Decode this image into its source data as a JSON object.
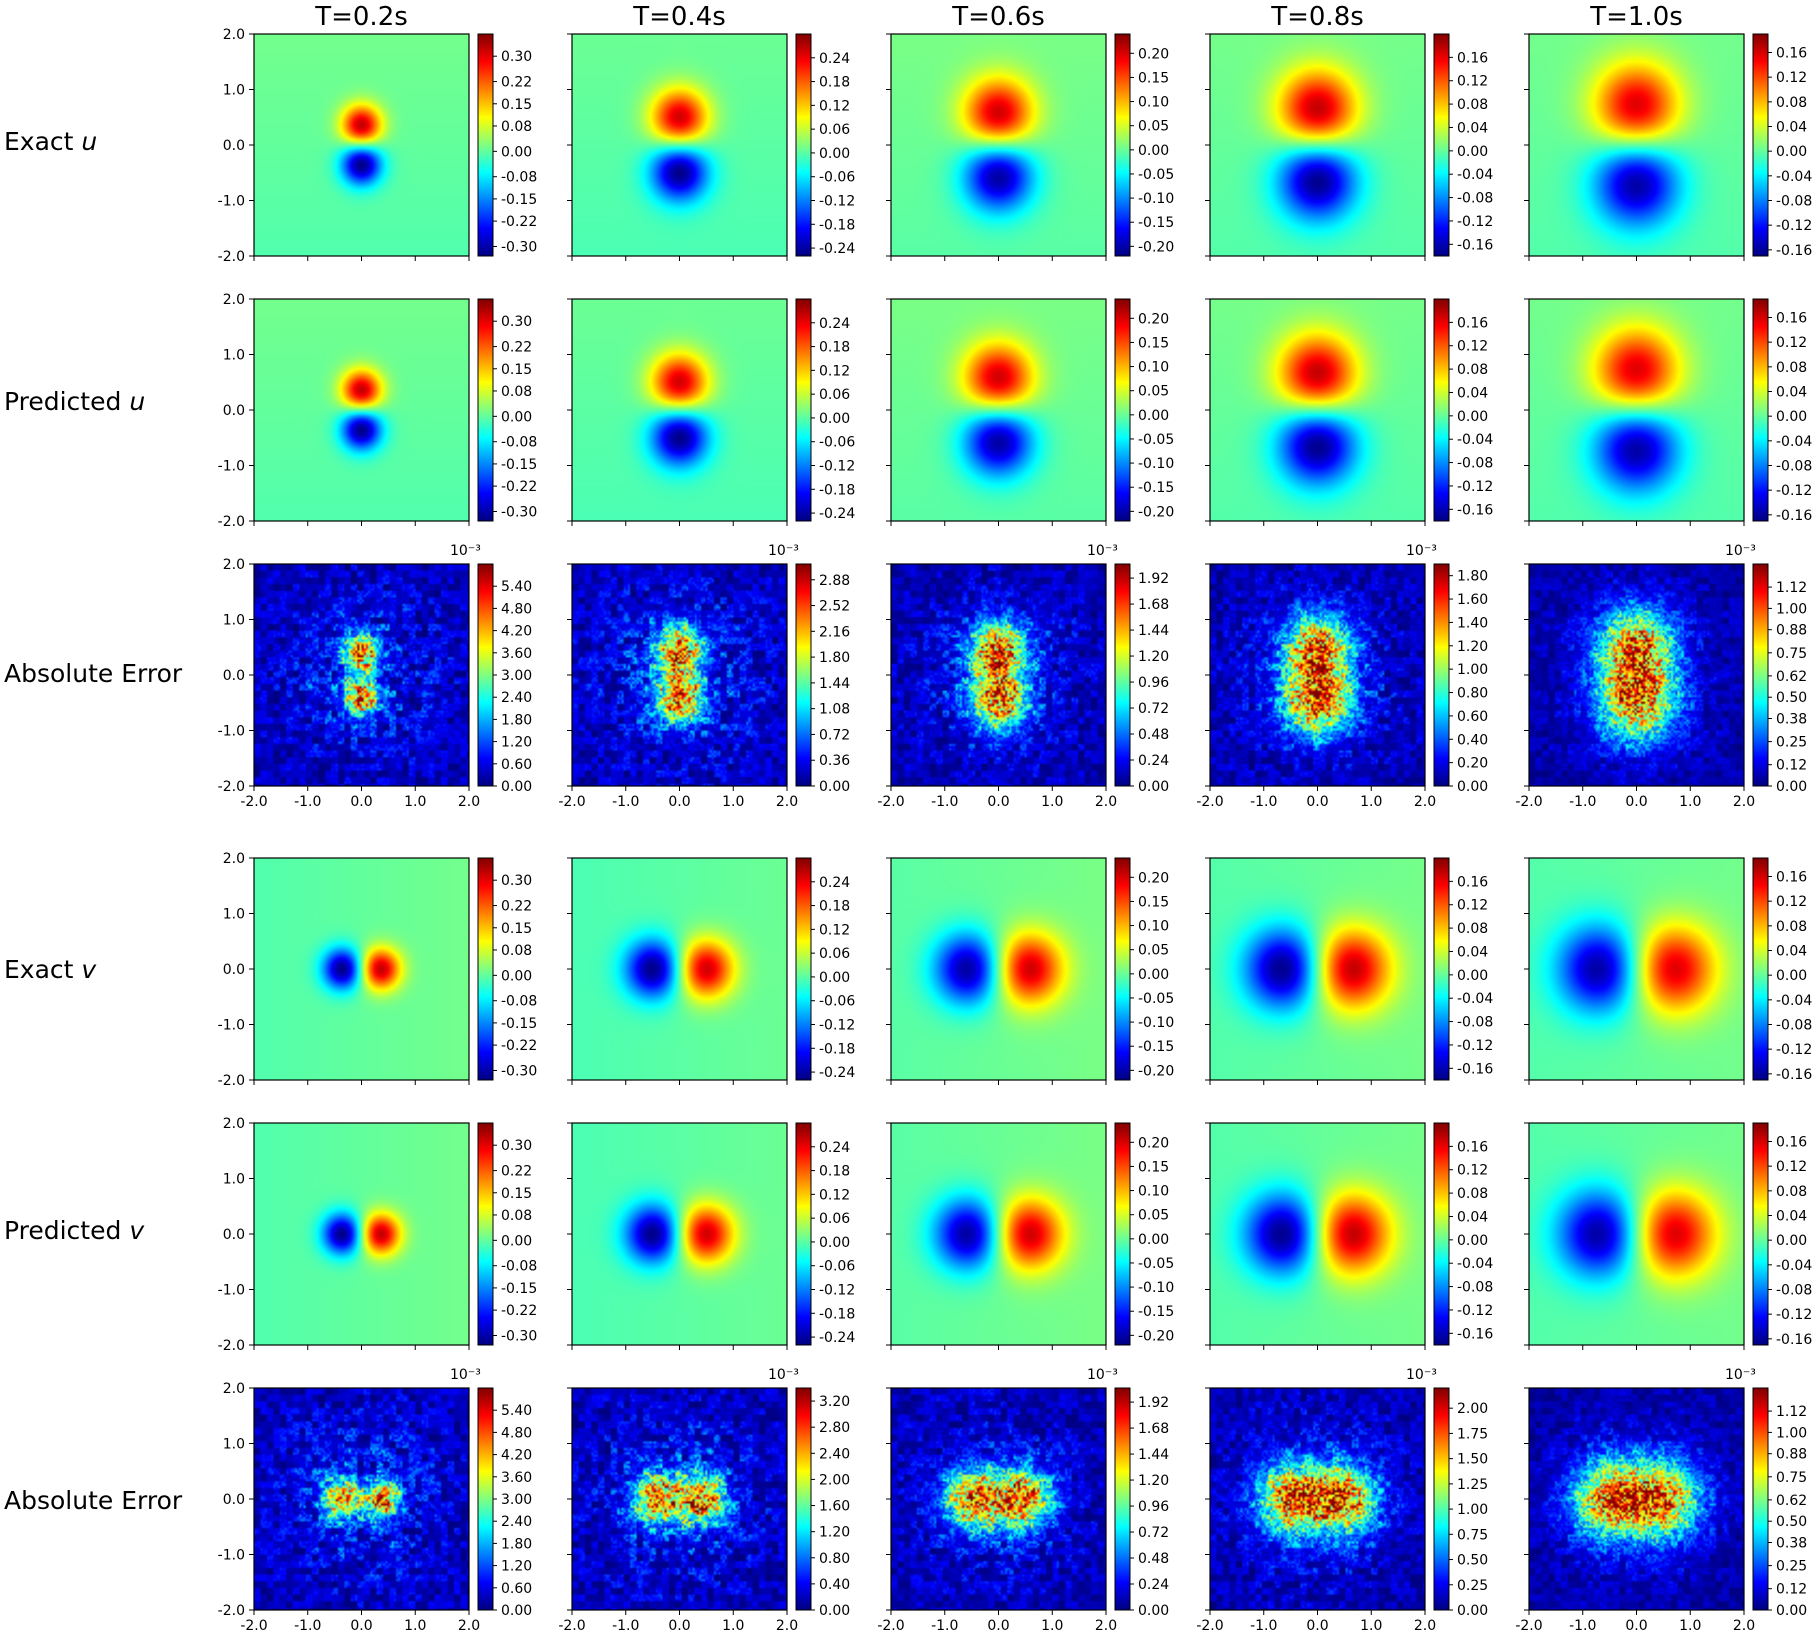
{
  "colormap": "jet",
  "colors": {
    "axis": "#000000",
    "text": "#000000"
  },
  "column_titles": [
    "T=0.2s",
    "T=0.4s",
    "T=0.6s",
    "T=0.8s",
    "T=1.0s"
  ],
  "row_labels": [
    {
      "text": "Exact ",
      "var": "u"
    },
    {
      "text": "Predicted ",
      "var": "u"
    },
    {
      "text": "Absolute Error",
      "var": ""
    },
    {
      "text": "Exact ",
      "var": "v"
    },
    {
      "text": "Predicted ",
      "var": "v"
    },
    {
      "text": "Absolute Error",
      "var": ""
    }
  ],
  "chart_data": {
    "type": "heatmap",
    "title": "",
    "xlim": [
      -2.0,
      2.0
    ],
    "ylim": [
      -2.0,
      2.0
    ],
    "x_ticks": [
      "-2.0",
      "-1.0",
      "0.0",
      "1.0",
      "2.0"
    ],
    "y_ticks": [
      "2.0",
      "1.0",
      "0.0",
      "-1.0",
      "-2.0"
    ],
    "exponent_label": "10⁻³",
    "rows": [
      {
        "name": "exact-u",
        "field": "u",
        "kind": "field",
        "panels": [
          {
            "T": 0.2,
            "amp": 0.33,
            "sigma": 0.26,
            "offset": 0.35,
            "cmin": -0.33,
            "cmax": 0.37,
            "ticks": [
              "0.30",
              "0.22",
              "0.15",
              "0.08",
              "0.00",
              "-0.08",
              "-0.15",
              "-0.22",
              "-0.30"
            ]
          },
          {
            "T": 0.4,
            "amp": 0.26,
            "sigma": 0.37,
            "offset": 0.48,
            "cmin": -0.26,
            "cmax": 0.3,
            "ticks": [
              "0.24",
              "0.18",
              "0.12",
              "0.06",
              "0.00",
              "-0.06",
              "-0.12",
              "-0.18",
              "-0.24"
            ]
          },
          {
            "T": 0.6,
            "amp": 0.21,
            "sigma": 0.45,
            "offset": 0.55,
            "cmin": -0.22,
            "cmax": 0.24,
            "ticks": [
              "0.20",
              "0.15",
              "0.10",
              "0.05",
              "0.00",
              "-0.05",
              "-0.10",
              "-0.15",
              "-0.20"
            ]
          },
          {
            "T": 0.8,
            "amp": 0.18,
            "sigma": 0.51,
            "offset": 0.62,
            "cmin": -0.18,
            "cmax": 0.2,
            "ticks": [
              "0.16",
              "0.12",
              "0.08",
              "0.04",
              "0.00",
              "-0.04",
              "-0.08",
              "-0.12",
              "-0.16"
            ]
          },
          {
            "T": 1.0,
            "amp": 0.16,
            "sigma": 0.55,
            "offset": 0.68,
            "cmin": -0.17,
            "cmax": 0.19,
            "ticks": [
              "0.16",
              "0.12",
              "0.08",
              "0.04",
              "0.00",
              "-0.04",
              "-0.08",
              "-0.12",
              "-0.16"
            ]
          }
        ]
      },
      {
        "name": "predicted-u",
        "field": "u",
        "kind": "field",
        "panels": [
          {
            "T": 0.2,
            "amp": 0.33,
            "sigma": 0.26,
            "offset": 0.35,
            "cmin": -0.33,
            "cmax": 0.37,
            "ticks": [
              "0.30",
              "0.22",
              "0.15",
              "0.08",
              "0.00",
              "-0.08",
              "-0.15",
              "-0.22",
              "-0.30"
            ]
          },
          {
            "T": 0.4,
            "amp": 0.26,
            "sigma": 0.37,
            "offset": 0.48,
            "cmin": -0.26,
            "cmax": 0.3,
            "ticks": [
              "0.24",
              "0.18",
              "0.12",
              "0.06",
              "0.00",
              "-0.06",
              "-0.12",
              "-0.18",
              "-0.24"
            ]
          },
          {
            "T": 0.6,
            "amp": 0.21,
            "sigma": 0.45,
            "offset": 0.55,
            "cmin": -0.22,
            "cmax": 0.24,
            "ticks": [
              "0.20",
              "0.15",
              "0.10",
              "0.05",
              "0.00",
              "-0.05",
              "-0.10",
              "-0.15",
              "-0.20"
            ]
          },
          {
            "T": 0.8,
            "amp": 0.18,
            "sigma": 0.51,
            "offset": 0.62,
            "cmin": -0.18,
            "cmax": 0.2,
            "ticks": [
              "0.16",
              "0.12",
              "0.08",
              "0.04",
              "0.00",
              "-0.04",
              "-0.08",
              "-0.12",
              "-0.16"
            ]
          },
          {
            "T": 1.0,
            "amp": 0.16,
            "sigma": 0.55,
            "offset": 0.68,
            "cmin": -0.17,
            "cmax": 0.19,
            "ticks": [
              "0.16",
              "0.12",
              "0.08",
              "0.04",
              "0.00",
              "-0.04",
              "-0.08",
              "-0.12",
              "-0.16"
            ]
          }
        ]
      },
      {
        "name": "absolute-error-u",
        "field": "u",
        "kind": "error",
        "panels": [
          {
            "T": 0.2,
            "peak": 5.8,
            "spread": 0.22,
            "noise": 0.9,
            "cmin": 0,
            "cmax": 6.0,
            "ticks": [
              "5.40",
              "4.80",
              "4.20",
              "3.60",
              "3.00",
              "2.40",
              "1.80",
              "1.20",
              "0.60",
              "0.00"
            ]
          },
          {
            "T": 0.4,
            "peak": 3.0,
            "spread": 0.3,
            "noise": 0.9,
            "cmin": 0,
            "cmax": 3.1,
            "ticks": [
              "2.88",
              "2.52",
              "2.16",
              "1.80",
              "1.44",
              "1.08",
              "0.72",
              "0.36",
              "0.00"
            ]
          },
          {
            "T": 0.6,
            "peak": 1.95,
            "spread": 0.36,
            "noise": 0.75,
            "cmin": 0,
            "cmax": 2.05,
            "ticks": [
              "1.92",
              "1.68",
              "1.44",
              "1.20",
              "0.96",
              "0.72",
              "0.48",
              "0.24",
              "0.00"
            ]
          },
          {
            "T": 0.8,
            "peak": 1.85,
            "spread": 0.42,
            "noise": 0.7,
            "cmin": 0,
            "cmax": 1.9,
            "ticks": [
              "1.80",
              "1.60",
              "1.40",
              "1.20",
              "1.00",
              "0.80",
              "0.60",
              "0.40",
              "0.20",
              "0.00"
            ]
          },
          {
            "T": 1.0,
            "peak": 1.15,
            "spread": 0.48,
            "noise": 0.55,
            "cmin": 0,
            "cmax": 1.25,
            "ticks": [
              "1.12",
              "1.00",
              "0.88",
              "0.75",
              "0.62",
              "0.50",
              "0.38",
              "0.25",
              "0.12",
              "0.00"
            ]
          }
        ]
      },
      {
        "name": "exact-v",
        "field": "v",
        "kind": "field",
        "panels": [
          {
            "T": 0.2,
            "amp": 0.33,
            "sigma": 0.26,
            "offset": 0.35,
            "cmin": -0.33,
            "cmax": 0.37,
            "ticks": [
              "0.30",
              "0.22",
              "0.15",
              "0.08",
              "0.00",
              "-0.08",
              "-0.15",
              "-0.22",
              "-0.30"
            ]
          },
          {
            "T": 0.4,
            "amp": 0.26,
            "sigma": 0.37,
            "offset": 0.48,
            "cmin": -0.26,
            "cmax": 0.3,
            "ticks": [
              "0.24",
              "0.18",
              "0.12",
              "0.06",
              "0.00",
              "-0.06",
              "-0.12",
              "-0.18",
              "-0.24"
            ]
          },
          {
            "T": 0.6,
            "amp": 0.21,
            "sigma": 0.45,
            "offset": 0.55,
            "cmin": -0.22,
            "cmax": 0.24,
            "ticks": [
              "0.20",
              "0.15",
              "0.10",
              "0.05",
              "0.00",
              "-0.05",
              "-0.10",
              "-0.15",
              "-0.20"
            ]
          },
          {
            "T": 0.8,
            "amp": 0.18,
            "sigma": 0.51,
            "offset": 0.62,
            "cmin": -0.18,
            "cmax": 0.2,
            "ticks": [
              "0.16",
              "0.12",
              "0.08",
              "0.04",
              "0.00",
              "-0.04",
              "-0.08",
              "-0.12",
              "-0.16"
            ]
          },
          {
            "T": 1.0,
            "amp": 0.16,
            "sigma": 0.55,
            "offset": 0.68,
            "cmin": -0.17,
            "cmax": 0.19,
            "ticks": [
              "0.16",
              "0.12",
              "0.08",
              "0.04",
              "0.00",
              "-0.04",
              "-0.08",
              "-0.12",
              "-0.16"
            ]
          }
        ]
      },
      {
        "name": "predicted-v",
        "field": "v",
        "kind": "field",
        "panels": [
          {
            "T": 0.2,
            "amp": 0.33,
            "sigma": 0.26,
            "offset": 0.35,
            "cmin": -0.33,
            "cmax": 0.37,
            "ticks": [
              "0.30",
              "0.22",
              "0.15",
              "0.08",
              "0.00",
              "-0.08",
              "-0.15",
              "-0.22",
              "-0.30"
            ]
          },
          {
            "T": 0.4,
            "amp": 0.26,
            "sigma": 0.37,
            "offset": 0.48,
            "cmin": -0.26,
            "cmax": 0.3,
            "ticks": [
              "0.24",
              "0.18",
              "0.12",
              "0.06",
              "0.00",
              "-0.06",
              "-0.12",
              "-0.18",
              "-0.24"
            ]
          },
          {
            "T": 0.6,
            "amp": 0.21,
            "sigma": 0.45,
            "offset": 0.55,
            "cmin": -0.22,
            "cmax": 0.24,
            "ticks": [
              "0.20",
              "0.15",
              "0.10",
              "0.05",
              "0.00",
              "-0.05",
              "-0.10",
              "-0.15",
              "-0.20"
            ]
          },
          {
            "T": 0.8,
            "amp": 0.18,
            "sigma": 0.51,
            "offset": 0.62,
            "cmin": -0.18,
            "cmax": 0.2,
            "ticks": [
              "0.16",
              "0.12",
              "0.08",
              "0.04",
              "0.00",
              "-0.04",
              "-0.08",
              "-0.12",
              "-0.16"
            ]
          },
          {
            "T": 1.0,
            "amp": 0.16,
            "sigma": 0.55,
            "offset": 0.68,
            "cmin": -0.17,
            "cmax": 0.19,
            "ticks": [
              "0.16",
              "0.12",
              "0.08",
              "0.04",
              "0.00",
              "-0.04",
              "-0.08",
              "-0.12",
              "-0.16"
            ]
          }
        ]
      },
      {
        "name": "absolute-error-v",
        "field": "v",
        "kind": "error",
        "panels": [
          {
            "T": 0.2,
            "peak": 5.9,
            "spread": 0.22,
            "noise": 0.9,
            "cmin": 0,
            "cmax": 6.0,
            "ticks": [
              "5.40",
              "4.80",
              "4.20",
              "3.60",
              "3.00",
              "2.40",
              "1.80",
              "1.20",
              "0.60",
              "0.00"
            ]
          },
          {
            "T": 0.4,
            "peak": 3.2,
            "spread": 0.3,
            "noise": 0.9,
            "cmin": 0,
            "cmax": 3.4,
            "ticks": [
              "3.20",
              "2.80",
              "2.40",
              "2.00",
              "1.60",
              "1.20",
              "0.80",
              "0.40",
              "0.00"
            ]
          },
          {
            "T": 0.6,
            "peak": 1.95,
            "spread": 0.36,
            "noise": 0.75,
            "cmin": 0,
            "cmax": 2.05,
            "ticks": [
              "1.92",
              "1.68",
              "1.44",
              "1.20",
              "0.96",
              "0.72",
              "0.48",
              "0.24",
              "0.00"
            ]
          },
          {
            "T": 0.8,
            "peak": 2.1,
            "spread": 0.42,
            "noise": 0.7,
            "cmin": 0,
            "cmax": 2.2,
            "ticks": [
              "2.00",
              "1.75",
              "1.50",
              "1.25",
              "1.00",
              "0.75",
              "0.50",
              "0.25",
              "0.00"
            ]
          },
          {
            "T": 1.0,
            "peak": 1.15,
            "spread": 0.48,
            "noise": 0.55,
            "cmin": 0,
            "cmax": 1.25,
            "ticks": [
              "1.12",
              "1.00",
              "0.88",
              "0.75",
              "0.62",
              "0.50",
              "0.38",
              "0.25",
              "0.12",
              "0.00"
            ]
          }
        ]
      }
    ]
  }
}
